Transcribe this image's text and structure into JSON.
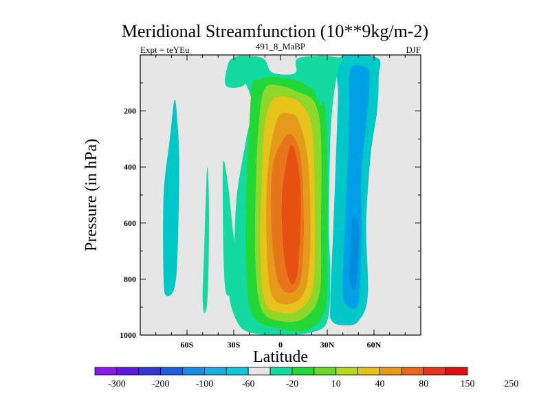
{
  "chart_data": {
    "type": "contour",
    "title": "Meridional Streamfunction (10**9kg/m-2)",
    "left_label": "Expt = teYEu",
    "center_label": "491_8_MaBP",
    "right_label": "DJF",
    "xlabel": "Latitude",
    "ylabel": "Pressure (in hPa)",
    "xlim": [
      -90,
      90
    ],
    "ylim": [
      1000,
      0
    ],
    "x_ticks": [
      {
        "value": -60,
        "label": "60S"
      },
      {
        "value": -30,
        "label": "30S"
      },
      {
        "value": 0,
        "label": "0"
      },
      {
        "value": 30,
        "label": "30N"
      },
      {
        "value": 60,
        "label": "60N"
      }
    ],
    "y_ticks": [
      {
        "value": 200,
        "label": "200"
      },
      {
        "value": 400,
        "label": "400"
      },
      {
        "value": 600,
        "label": "600"
      },
      {
        "value": 800,
        "label": "800"
      },
      {
        "value": 1000,
        "label": "1000"
      }
    ],
    "background_color": "#e6e6e6",
    "colorbar": {
      "levels": [
        "-300",
        "-200",
        "-100",
        "-60",
        "-20",
        "10",
        "40",
        "80",
        "150",
        "250"
      ],
      "colors": [
        "#8a19e8",
        "#5e18e0",
        "#3535d4",
        "#1f5fd8",
        "#1c8ce0",
        "#1aaede",
        "#11c6dc",
        "#e6e6e6",
        "#14d9a0",
        "#22d836",
        "#6bd62a",
        "#b6d624",
        "#e4c21a",
        "#e69a1a",
        "#e6681c",
        "#e6341c",
        "#dc0e14"
      ]
    },
    "contours": [
      {
        "name": "north-cell-outer",
        "color": "#00c8c8",
        "points": [
          [
            38,
            10
          ],
          [
            37,
            150
          ],
          [
            36,
            300
          ],
          [
            34,
            600
          ],
          [
            32,
            880
          ],
          [
            33,
            950
          ],
          [
            42,
            965
          ],
          [
            50,
            950
          ],
          [
            56,
            860
          ],
          [
            55,
            600
          ],
          [
            58,
            350
          ],
          [
            62,
            200
          ],
          [
            63,
            80
          ],
          [
            62,
            10
          ]
        ]
      },
      {
        "name": "north-cell-inner",
        "color": "#00a0e6",
        "points": [
          [
            45,
            50
          ],
          [
            44,
            200
          ],
          [
            43,
            400
          ],
          [
            41,
            650
          ],
          [
            40,
            850
          ],
          [
            44,
            900
          ],
          [
            50,
            880
          ],
          [
            52,
            650
          ],
          [
            52,
            420
          ],
          [
            55,
            250
          ],
          [
            57,
            120
          ],
          [
            56,
            50
          ]
        ]
      },
      {
        "name": "north-cell-core",
        "color": "#008cdc",
        "points": [
          [
            46,
            580
          ],
          [
            45,
            700
          ],
          [
            44,
            800
          ],
          [
            48,
            830
          ],
          [
            50,
            700
          ],
          [
            50,
            600
          ]
        ]
      },
      {
        "name": "south-polar-cell",
        "color": "#00c8c8",
        "points": [
          [
            -68,
            160
          ],
          [
            -71,
            300
          ],
          [
            -75,
            500
          ],
          [
            -75,
            800
          ],
          [
            -73,
            860
          ],
          [
            -68,
            830
          ],
          [
            -66,
            700
          ],
          [
            -65,
            400
          ],
          [
            -66,
            250
          ]
        ]
      },
      {
        "name": "streak-a",
        "color": "#14d9a0",
        "points": [
          [
            -50,
            860
          ],
          [
            -49,
            920
          ],
          [
            -47,
            880
          ],
          [
            -46,
            700
          ],
          [
            -46,
            500
          ],
          [
            -47,
            400
          ],
          [
            -48,
            520
          ],
          [
            -49,
            700
          ]
        ]
      },
      {
        "name": "streak-b",
        "color": "#14d9a0",
        "points": [
          [
            -36,
            800
          ],
          [
            -37,
            400
          ],
          [
            -34,
            450
          ],
          [
            -30,
            650
          ],
          [
            -25,
            830
          ],
          [
            -32,
            860
          ]
        ]
      },
      {
        "name": "hadley-outer",
        "color": "#14d9a0",
        "points": [
          [
            -30,
            10
          ],
          [
            -24,
            80
          ],
          [
            -18,
            180
          ],
          [
            -22,
            300
          ],
          [
            -28,
            500
          ],
          [
            -30,
            700
          ],
          [
            -33,
            850
          ],
          [
            -28,
            950
          ],
          [
            -20,
            990
          ],
          [
            0,
            1000
          ],
          [
            20,
            990
          ],
          [
            30,
            950
          ],
          [
            32,
            800
          ],
          [
            31,
            600
          ],
          [
            32,
            300
          ],
          [
            34,
            150
          ],
          [
            37,
            50
          ],
          [
            38,
            10
          ],
          [
            12,
            10
          ],
          [
            10,
            60
          ],
          [
            4,
            70
          ],
          [
            -6,
            60
          ],
          [
            -12,
            10
          ]
        ]
      },
      {
        "name": "hadley-ring-2",
        "color": "#22d836",
        "points": [
          [
            -18,
            100
          ],
          [
            -14,
            90
          ],
          [
            -10,
            80
          ],
          [
            0,
            80
          ],
          [
            10,
            90
          ],
          [
            17,
            110
          ],
          [
            28,
            170
          ],
          [
            30,
            400
          ],
          [
            30,
            700
          ],
          [
            29,
            900
          ],
          [
            18,
            980
          ],
          [
            -2,
            975
          ],
          [
            -18,
            930
          ],
          [
            -22,
            760
          ],
          [
            -22,
            500
          ],
          [
            -20,
            250
          ]
        ]
      },
      {
        "name": "hadley-ring-3",
        "color": "#8fd82a",
        "points": [
          [
            -10,
            120
          ],
          [
            0,
            110
          ],
          [
            10,
            130
          ],
          [
            22,
            170
          ],
          [
            26,
            300
          ],
          [
            26,
            600
          ],
          [
            25,
            850
          ],
          [
            15,
            940
          ],
          [
            0,
            950
          ],
          [
            -12,
            910
          ],
          [
            -16,
            750
          ],
          [
            -16,
            500
          ],
          [
            -14,
            250
          ]
        ]
      },
      {
        "name": "hadley-ring-4",
        "color": "#e6c41a",
        "points": [
          [
            -5,
            160
          ],
          [
            5,
            150
          ],
          [
            14,
            180
          ],
          [
            20,
            260
          ],
          [
            22,
            500
          ],
          [
            21,
            820
          ],
          [
            12,
            910
          ],
          [
            0,
            920
          ],
          [
            -10,
            880
          ],
          [
            -13,
            700
          ],
          [
            -12,
            450
          ],
          [
            -10,
            250
          ]
        ]
      },
      {
        "name": "hadley-ring-5",
        "color": "#e69a1a",
        "points": [
          [
            -2,
            230
          ],
          [
            6,
            210
          ],
          [
            12,
            240
          ],
          [
            18,
            400
          ],
          [
            19,
            700
          ],
          [
            15,
            850
          ],
          [
            4,
            890
          ],
          [
            -6,
            850
          ],
          [
            -9,
            650
          ],
          [
            -8,
            400
          ]
        ]
      },
      {
        "name": "hadley-ring-6",
        "color": "#e6761c",
        "points": [
          [
            2,
            300
          ],
          [
            8,
            290
          ],
          [
            13,
            370
          ],
          [
            15,
            600
          ],
          [
            13,
            800
          ],
          [
            6,
            850
          ],
          [
            -2,
            800
          ],
          [
            -6,
            600
          ],
          [
            -5,
            400
          ]
        ]
      },
      {
        "name": "hadley-core",
        "color": "#e65010",
        "points": [
          [
            6,
            330
          ],
          [
            10,
            360
          ],
          [
            13,
            500
          ],
          [
            12,
            700
          ],
          [
            10,
            800
          ],
          [
            6,
            810
          ],
          [
            2,
            700
          ],
          [
            1,
            500
          ]
        ]
      },
      {
        "name": "cap-left",
        "color": "#14d9a0",
        "points": [
          [
            -30,
            10
          ],
          [
            -34,
            40
          ],
          [
            -35,
            110
          ],
          [
            -24,
            110
          ],
          [
            -20,
            60
          ],
          [
            -18,
            10
          ]
        ]
      },
      {
        "name": "cap-right",
        "color": "#14d9a0",
        "points": [
          [
            22,
            10
          ],
          [
            21,
            100
          ],
          [
            26,
            180
          ],
          [
            30,
            100
          ],
          [
            32,
            40
          ],
          [
            34,
            10
          ]
        ]
      }
    ]
  }
}
